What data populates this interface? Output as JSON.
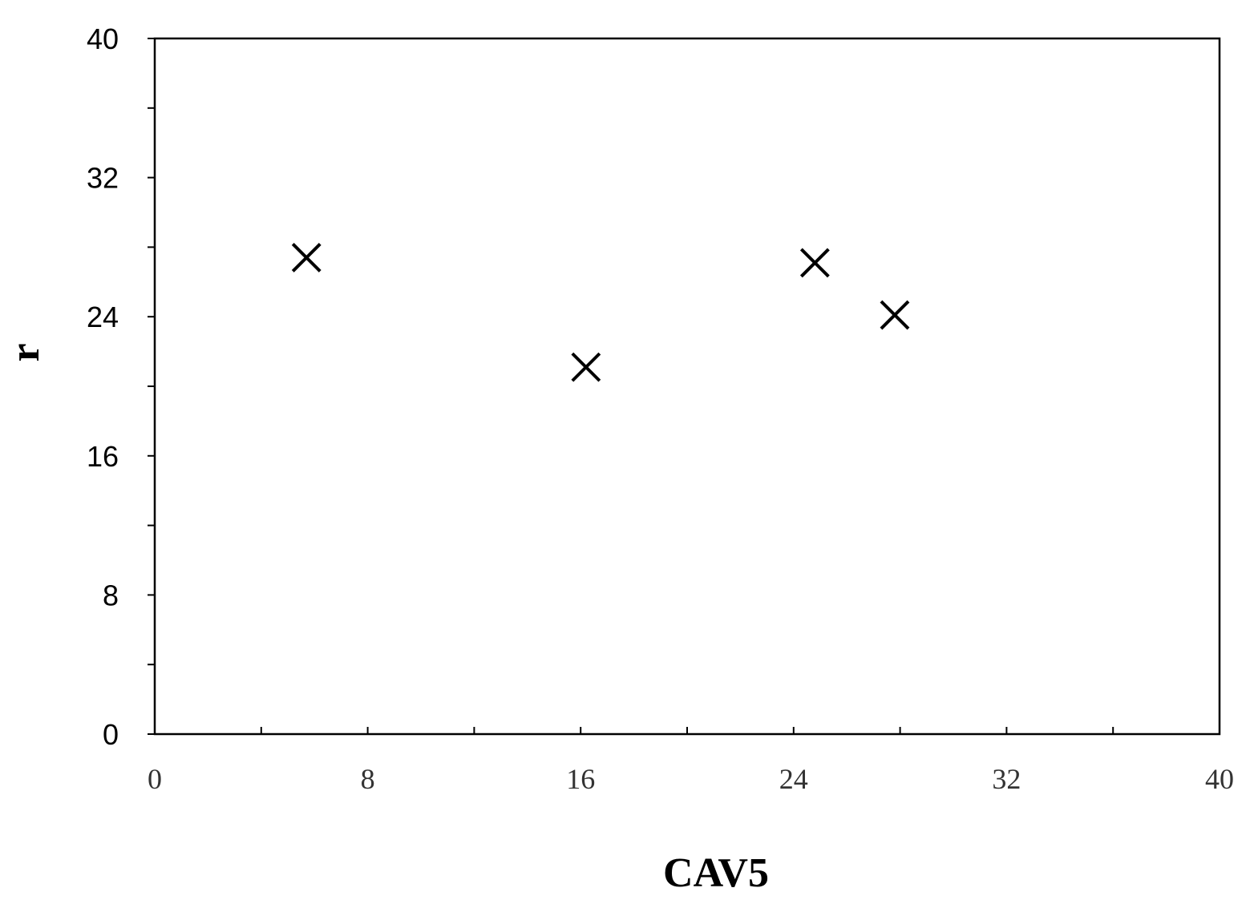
{
  "chart_data": {
    "type": "scatter",
    "title": "",
    "xlabel": "CAV5",
    "ylabel": "r",
    "xlim": [
      0,
      40
    ],
    "ylim": [
      0,
      40
    ],
    "xticks": [
      0,
      8,
      16,
      24,
      32,
      40
    ],
    "yticks": [
      0,
      8,
      16,
      24,
      32,
      40
    ],
    "xticks_minor": [
      4,
      12,
      20,
      28,
      36
    ],
    "yticks_minor": [
      4,
      12,
      20,
      28,
      36
    ],
    "grid": false,
    "marker": "x",
    "marker_color": "#000000",
    "points": [
      {
        "x": 5.7,
        "y": 27.4
      },
      {
        "x": 16.2,
        "y": 21.1
      },
      {
        "x": 24.8,
        "y": 27.1
      },
      {
        "x": 27.8,
        "y": 24.1
      }
    ]
  }
}
